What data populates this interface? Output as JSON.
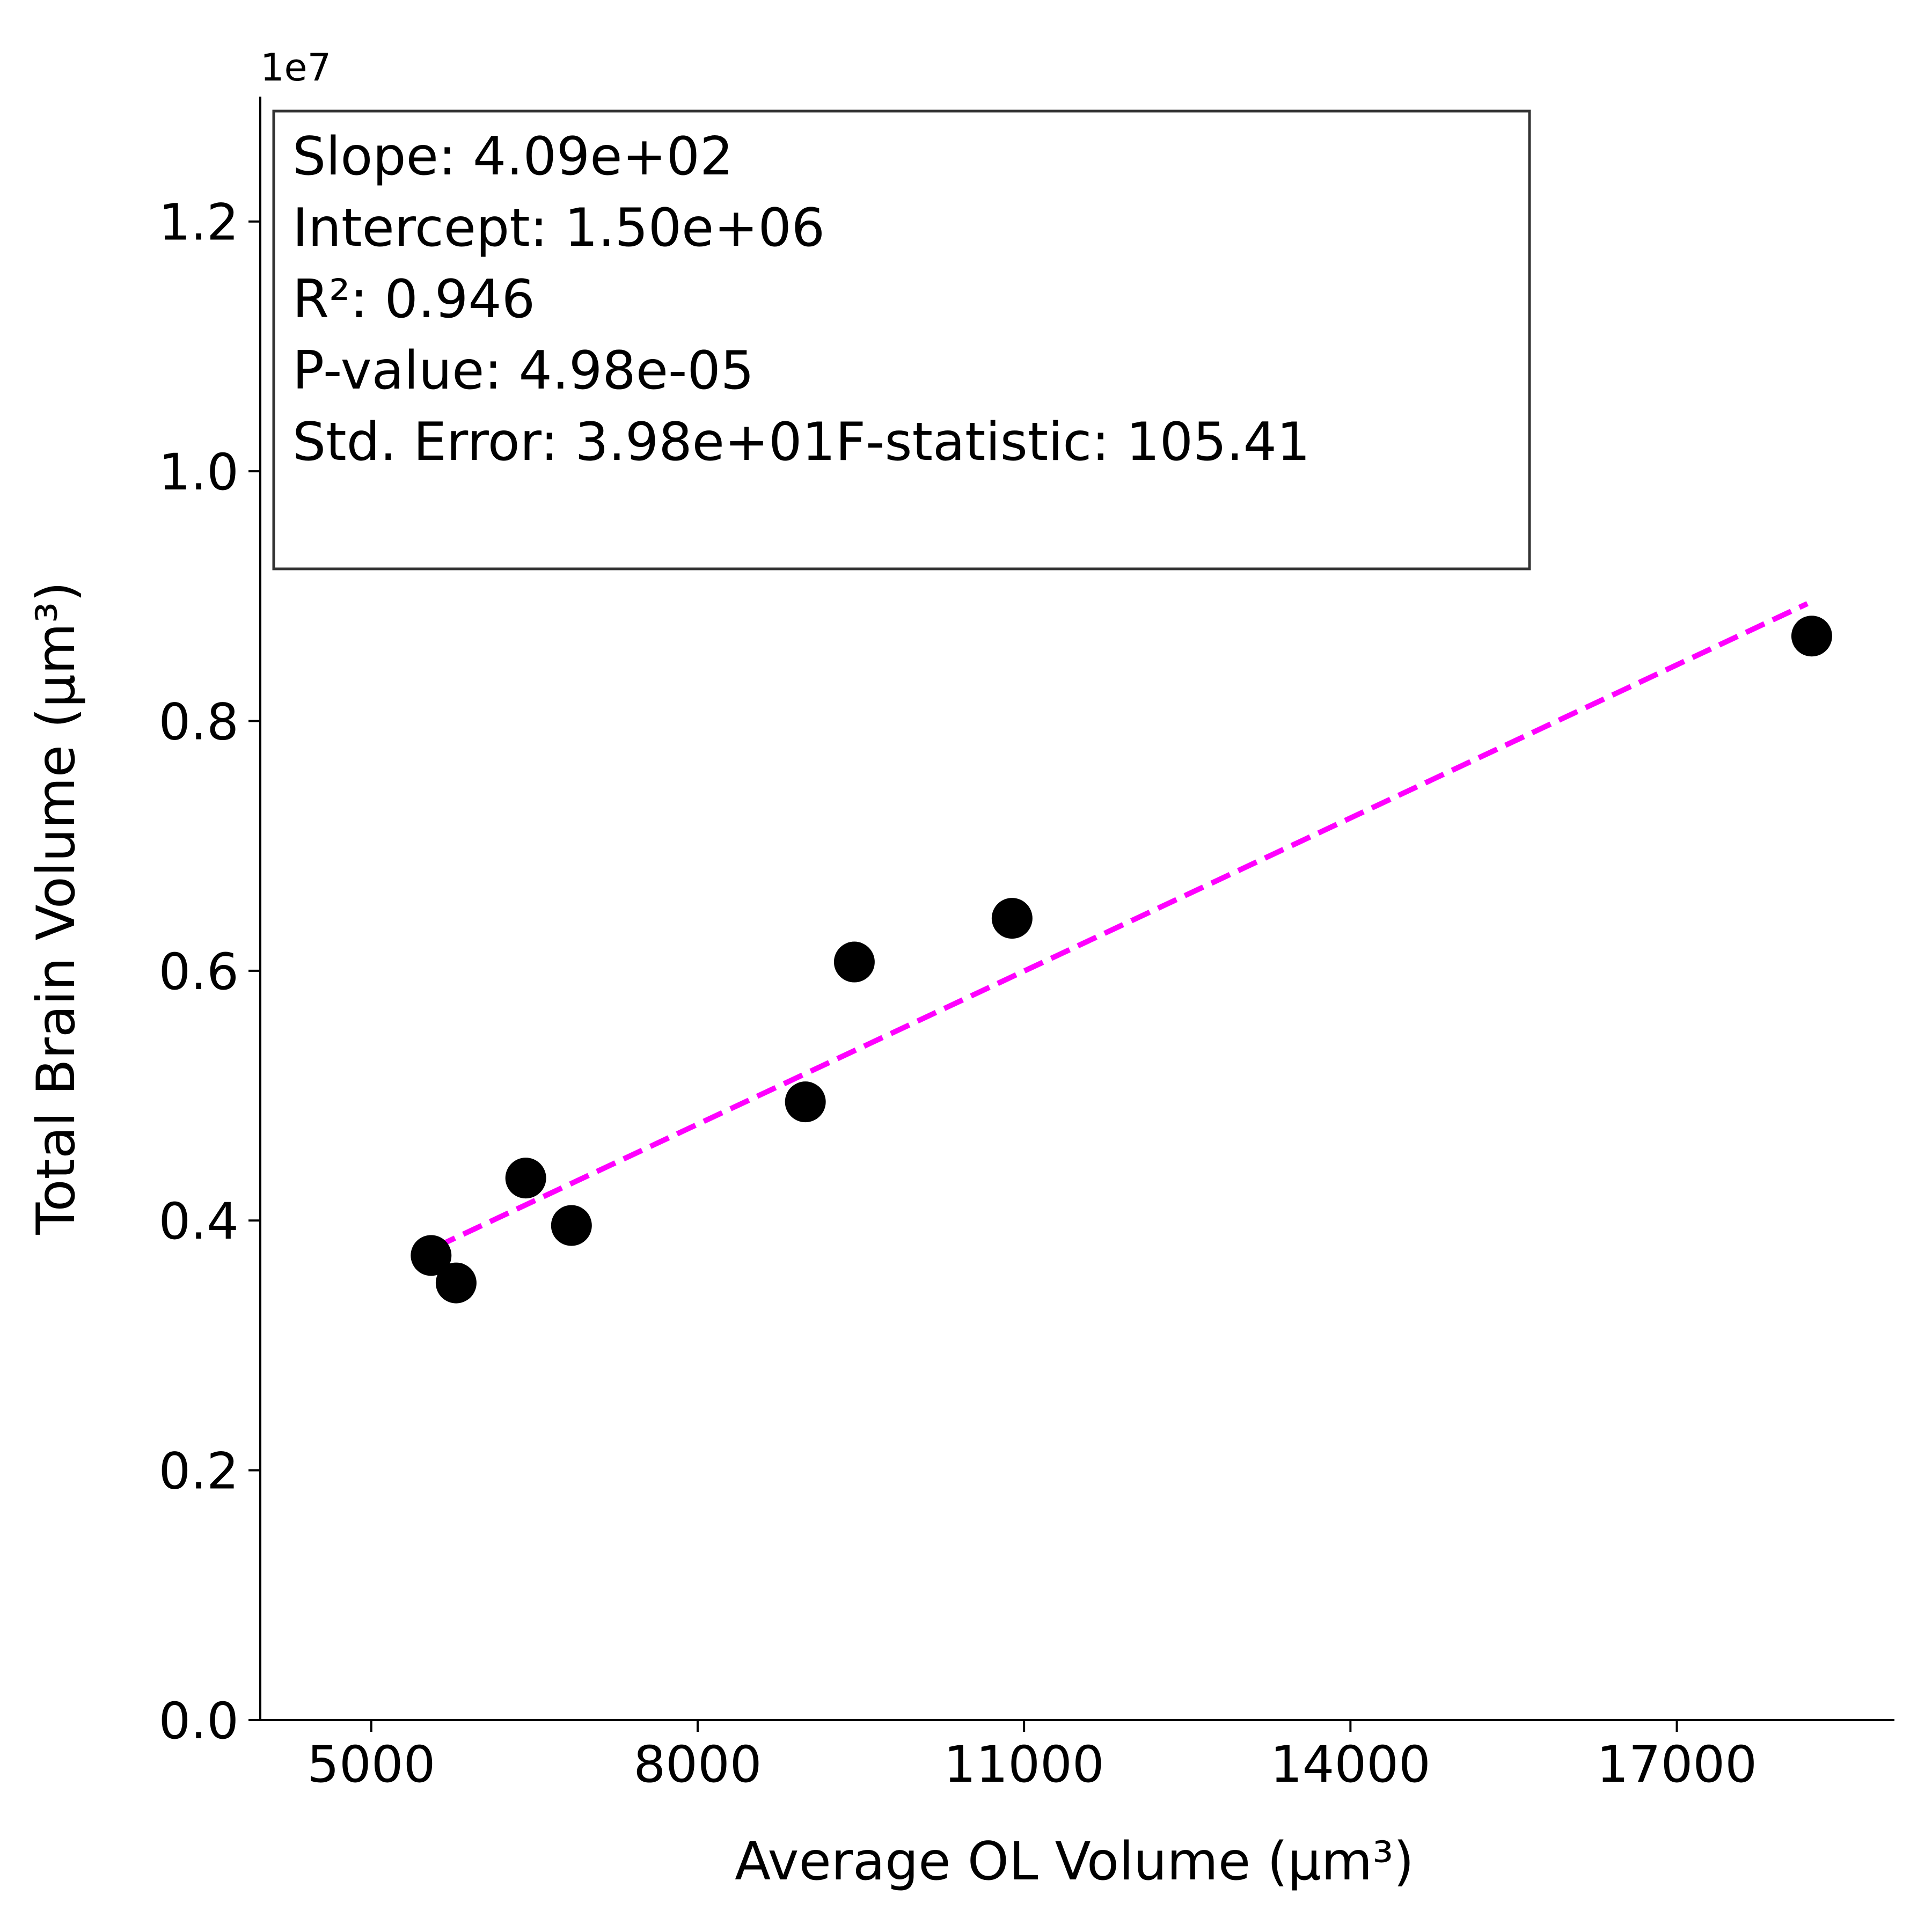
{
  "chart_data": {
    "type": "scatter",
    "title": "",
    "xlabel": "Average OL Volume (µm³)",
    "ylabel": "Total Brain Volume (µm³)",
    "y_offset_label": "1e7",
    "xlim": [
      3980,
      19000
    ],
    "ylim": [
      0,
      13000000
    ],
    "x_ticks": [
      5000,
      8000,
      11000,
      14000,
      17000
    ],
    "x_tick_labels": [
      "5000",
      "8000",
      "11000",
      "14000",
      "17000"
    ],
    "y_ticks": [
      0,
      2000000,
      4000000,
      6000000,
      8000000,
      10000000,
      12000000
    ],
    "y_tick_labels": [
      "0.0",
      "0.2",
      "0.4",
      "0.6",
      "0.8",
      "1.0",
      "1.2"
    ],
    "grid": false,
    "series": [
      {
        "type": "scatter",
        "color": "#000000",
        "points": [
          {
            "x": 5550,
            "y": 3720000
          },
          {
            "x": 5780,
            "y": 3500000
          },
          {
            "x": 6420,
            "y": 4340000
          },
          {
            "x": 6840,
            "y": 3960000
          },
          {
            "x": 8990,
            "y": 4950000
          },
          {
            "x": 9440,
            "y": 6070000
          },
          {
            "x": 10890,
            "y": 6420000
          },
          {
            "x": 18240,
            "y": 8680000
          }
        ]
      },
      {
        "type": "line",
        "style": "dashed",
        "color": "#ff00ff",
        "x": [
          5600,
          18200
        ],
        "y": [
          3790000,
          8940000
        ]
      }
    ],
    "stats_box": {
      "lines": [
        "Slope: 4.09e+02",
        "Intercept: 1.50e+06",
        "R²: 0.946",
        "P-value: 4.98e-05",
        "Std. Error: 3.98e+01F-statistic: 105.41"
      ]
    }
  }
}
